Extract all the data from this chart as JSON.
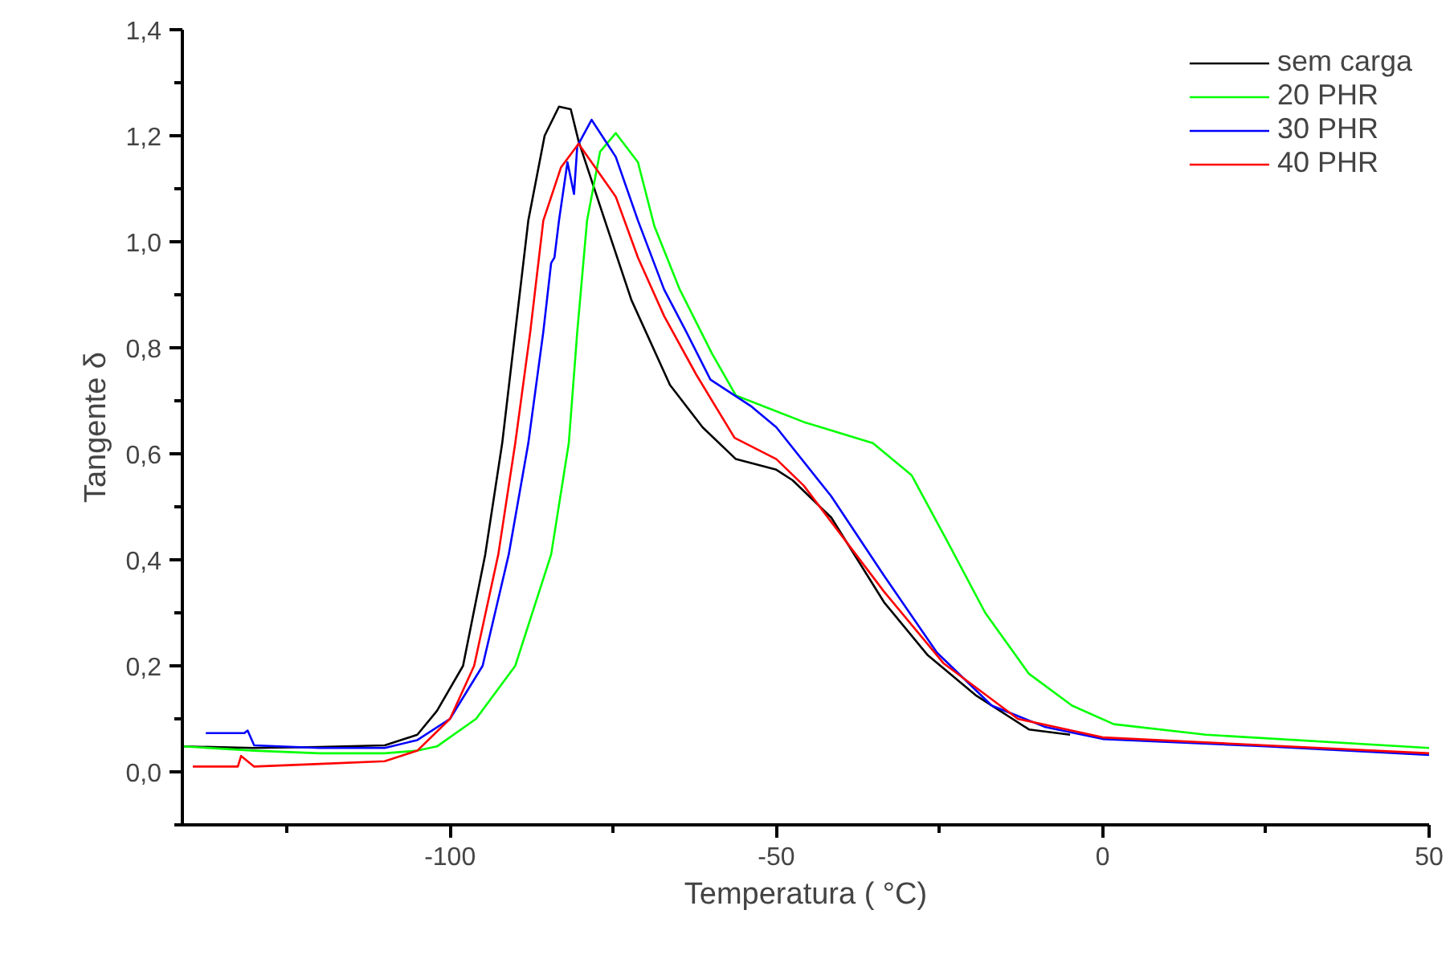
{
  "chart_data": {
    "type": "line",
    "xlabel": "Temperatura ( °C)",
    "ylabel": "Tangente δ",
    "xlim": [
      -141,
      50
    ],
    "ylim": [
      -0.1,
      1.4
    ],
    "xticks": [
      {
        "value": -125,
        "label": null
      },
      -100,
      {
        "value": -75,
        "label": null
      },
      -50,
      {
        "value": -25,
        "label": null
      },
      0,
      {
        "value": 25,
        "label": null
      },
      50
    ],
    "yticks": [
      {
        "value": -0.1,
        "label": null
      },
      {
        "value": 0,
        "label": "0,0"
      },
      {
        "value": 0.1,
        "label": null
      },
      {
        "value": 0.2,
        "label": "0,2"
      },
      {
        "value": 0.3,
        "label": null
      },
      {
        "value": 0.4,
        "label": "0,4"
      },
      {
        "value": 0.5,
        "label": null
      },
      {
        "value": 0.6,
        "label": "0,6"
      },
      {
        "value": 0.7,
        "label": null
      },
      {
        "value": 0.8,
        "label": "0,8"
      },
      {
        "value": 0.9,
        "label": null
      },
      {
        "value": 1.0,
        "label": "1,0"
      },
      {
        "value": 1.1,
        "label": null
      },
      {
        "value": 1.2,
        "label": "1,2"
      },
      {
        "value": 1.3,
        "label": null
      },
      {
        "value": 1.4,
        "label": "1,4"
      }
    ],
    "grid": false,
    "legend": "top right",
    "marker": "none",
    "line_style": "solid",
    "series": [
      {
        "name": "sem carga",
        "color": "#000000",
        "x": [
          -141,
          -130,
          -120,
          -110,
          -105,
          -102,
          -98,
          -94.6,
          -92,
          -90,
          -88,
          -85.5,
          -83.3,
          -81.5,
          -80.3,
          -76,
          -72.2,
          -66.3,
          -61.3,
          -56.2,
          -50,
          -47.5,
          -41.6,
          -33.5,
          -26.8,
          -19.5,
          -11.3,
          -5
        ],
        "values": [
          0.048,
          0.045,
          0.047,
          0.05,
          0.07,
          0.115,
          0.2,
          0.41,
          0.62,
          0.83,
          1.04,
          1.2,
          1.255,
          1.25,
          1.19,
          1.03,
          0.89,
          0.73,
          0.65,
          0.59,
          0.57,
          0.55,
          0.48,
          0.32,
          0.22,
          0.145,
          0.08,
          0.07
        ]
      },
      {
        "name": "20 PHR",
        "color": "#00ff00",
        "x": [
          -141,
          -130,
          -120,
          -110,
          -105,
          -102,
          -96,
          -90,
          -84.5,
          -81.8,
          -80.5,
          -79,
          -77,
          -74.6,
          -71.2,
          -68.7,
          -64.8,
          -59.9,
          -56.2,
          -45.8,
          -35.2,
          -29.3,
          -23.6,
          -18,
          -11.3,
          -4.7,
          1.7,
          15.8,
          50
        ],
        "values": [
          0.048,
          0.04,
          0.035,
          0.035,
          0.04,
          0.048,
          0.1,
          0.2,
          0.41,
          0.62,
          0.83,
          1.04,
          1.17,
          1.205,
          1.15,
          1.03,
          0.91,
          0.79,
          0.71,
          0.66,
          0.62,
          0.56,
          0.43,
          0.3,
          0.185,
          0.125,
          0.09,
          0.07,
          0.045
        ]
      },
      {
        "name": "30 PHR",
        "color": "#0000ff",
        "x": [
          -137.4,
          -131.5,
          -131,
          -130,
          -120,
          -110,
          -105,
          -100,
          -95,
          -91,
          -88,
          -85.7,
          -84.5,
          -84,
          -83.3,
          -82,
          -81,
          -80.5,
          -78.3,
          -74.6,
          -71.2,
          -67.2,
          -63.8,
          -60.1,
          -53.9,
          -50,
          -41.6,
          -33.5,
          -25.4,
          -17,
          -8.9,
          0,
          25,
          50
        ],
        "values": [
          0.073,
          0.073,
          0.078,
          0.05,
          0.045,
          0.045,
          0.06,
          0.1,
          0.2,
          0.41,
          0.62,
          0.83,
          0.96,
          0.97,
          1.04,
          1.15,
          1.09,
          1.18,
          1.23,
          1.16,
          1.04,
          0.91,
          0.83,
          0.74,
          0.69,
          0.65,
          0.52,
          0.37,
          0.225,
          0.125,
          0.085,
          0.062,
          0.048,
          0.032
        ]
      },
      {
        "name": "40 PHR",
        "color": "#ff0000",
        "x": [
          -139.4,
          -132.5,
          -132,
          -130,
          -120,
          -110,
          -105,
          -100,
          -96.3,
          -92.6,
          -90,
          -87.7,
          -85.7,
          -83,
          -80.3,
          -74.6,
          -71.2,
          -67.2,
          -62.3,
          -56.4,
          -50,
          -45.8,
          -33.5,
          -24.4,
          -13,
          0,
          25,
          50
        ],
        "values": [
          0.01,
          0.01,
          0.03,
          0.01,
          0.015,
          0.02,
          0.04,
          0.1,
          0.2,
          0.41,
          0.62,
          0.83,
          1.04,
          1.14,
          1.185,
          1.085,
          0.97,
          0.86,
          0.75,
          0.63,
          0.59,
          0.54,
          0.34,
          0.205,
          0.1,
          0.065,
          0.05,
          0.035
        ]
      }
    ]
  }
}
